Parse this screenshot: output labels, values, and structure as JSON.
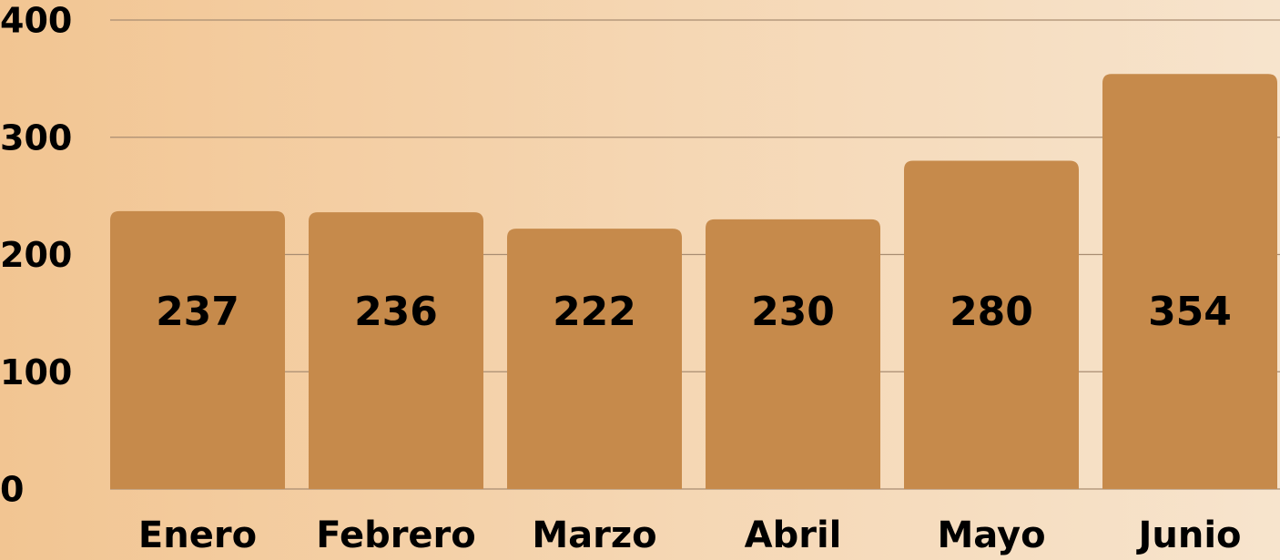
{
  "chart_data": {
    "type": "bar",
    "categories": [
      "Enero",
      "Febrero",
      "Marzo",
      "Abril",
      "Mayo",
      "Junio"
    ],
    "values": [
      237,
      236,
      222,
      230,
      280,
      354
    ],
    "color": "#c68a4b",
    "ylim": [
      0,
      400
    ],
    "yticks": [
      0,
      100,
      200,
      300,
      400
    ],
    "grid": true
  }
}
